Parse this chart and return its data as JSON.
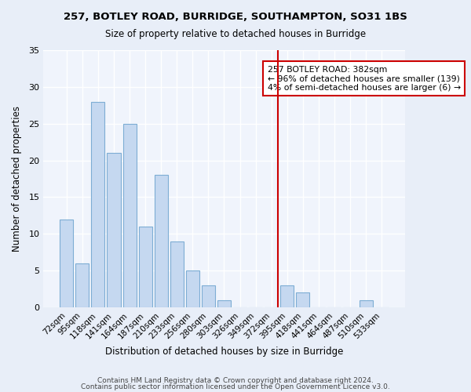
{
  "title1": "257, BOTLEY ROAD, BURRIDGE, SOUTHAMPTON, SO31 1BS",
  "title2": "Size of property relative to detached houses in Burridge",
  "xlabel": "Distribution of detached houses by size in Burridge",
  "ylabel": "Number of detached properties",
  "bar_labels": [
    "72sqm",
    "95sqm",
    "118sqm",
    "141sqm",
    "164sqm",
    "187sqm",
    "210sqm",
    "233sqm",
    "256sqm",
    "280sqm",
    "303sqm",
    "326sqm",
    "349sqm",
    "372sqm",
    "395sqm",
    "418sqm",
    "441sqm",
    "464sqm",
    "487sqm",
    "510sqm",
    "533sqm"
  ],
  "bar_heights": [
    12,
    6,
    28,
    21,
    25,
    11,
    18,
    9,
    5,
    3,
    1,
    0,
    0,
    0,
    3,
    2,
    0,
    0,
    0,
    1,
    0
  ],
  "bar_color": "#c5d8f0",
  "bar_edge_color": "#7dadd4",
  "vline_x": 13,
  "vline_color": "#cc0000",
  "annotation_title": "257 BOTLEY ROAD: 382sqm",
  "annotation_line1": "← 96% of detached houses are smaller (139)",
  "annotation_line2": "4% of semi-detached houses are larger (6) →",
  "annotation_box_color": "#ffffff",
  "annotation_box_edge_color": "#cc0000",
  "ylim": [
    0,
    35
  ],
  "yticks": [
    0,
    5,
    10,
    15,
    20,
    25,
    30,
    35
  ],
  "footer1": "Contains HM Land Registry data © Crown copyright and database right 2024.",
  "footer2": "Contains public sector information licensed under the Open Government Licence v3.0.",
  "bg_color": "#e8eef8",
  "plot_bg_color": "#f0f4fc"
}
